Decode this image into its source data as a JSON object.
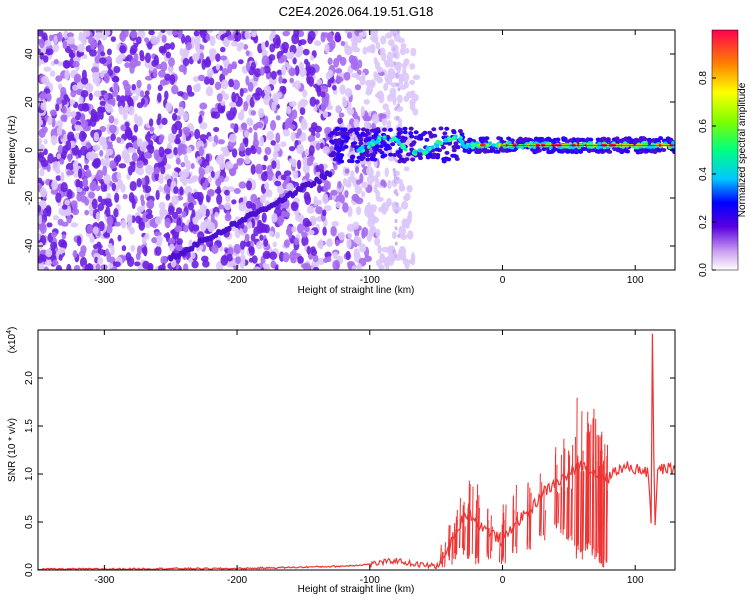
{
  "figure_title": "C2E4.2026.064.19.51.G18",
  "chart_data": [
    {
      "type": "heatmap",
      "title": "C2E4.2026.064.19.51.G18",
      "xlabel": "Height of straight line (km)",
      "ylabel": "Frequency (Hz)",
      "xlim": [
        -350,
        130
      ],
      "ylim": [
        -50,
        50
      ],
      "xticks": [
        -300,
        -200,
        -100,
        0,
        100
      ],
      "yticks": [
        -40,
        -20,
        0,
        20,
        40
      ],
      "xtick_labels": [
        "-300",
        "-200",
        "-100",
        "0",
        "100"
      ],
      "ytick_labels": [
        "-40",
        "-20",
        "0",
        "20",
        "40"
      ],
      "colorbar": {
        "label": "Normalized spectral amplitude",
        "range": [
          0,
          1
        ],
        "ticks": [
          0.0,
          0.2,
          0.4,
          0.6,
          0.8
        ],
        "tick_labels": [
          "0.0",
          "0.2",
          "0.4",
          "0.6",
          "0.8"
        ]
      },
      "features": {
        "noise_region_x": [
          -350,
          -80
        ],
        "main_signal_line": {
          "x_start": -130,
          "x_end": 130,
          "freq_hz": 2
        },
        "diagonal_trace": {
          "x": [
            -250,
            -130
          ],
          "freq_hz": [
            -45,
            -10
          ]
        }
      }
    },
    {
      "type": "line",
      "title": "",
      "xlabel": "Height of straight line (km)",
      "ylabel": "SNR (10 * v/v)",
      "y_multiplier": "(x10",
      "y_multiplier_exp": "4",
      "y_multiplier_close": ")",
      "xlim": [
        -350,
        130
      ],
      "ylim": [
        0,
        2.5
      ],
      "xticks": [
        -300,
        -200,
        -100,
        0,
        100
      ],
      "yticks": [
        0.0,
        0.5,
        1.0,
        1.5,
        2.0
      ],
      "xtick_labels": [
        "-300",
        "-200",
        "-100",
        "0",
        "100"
      ],
      "ytick_labels": [
        "0.0",
        "0.5",
        "1.0",
        "1.5",
        "2.0"
      ],
      "color": "#ee3333",
      "series": [
        {
          "name": "SNR",
          "x": [
            -350,
            -300,
            -250,
            -200,
            -150,
            -120,
            -100,
            -90,
            -80,
            -70,
            -60,
            -50,
            -45,
            -40,
            -35,
            -30,
            -25,
            -20,
            -15,
            -10,
            -5,
            0,
            5,
            10,
            15,
            20,
            25,
            30,
            35,
            40,
            45,
            50,
            55,
            60,
            65,
            70,
            75,
            80,
            85,
            90,
            95,
            100,
            105,
            110,
            112,
            113,
            114,
            115,
            117,
            120,
            125,
            130
          ],
          "values": [
            0.01,
            0.01,
            0.015,
            0.015,
            0.03,
            0.04,
            0.06,
            0.08,
            0.1,
            0.07,
            0.05,
            0.04,
            0.1,
            0.25,
            0.35,
            0.55,
            0.6,
            0.5,
            0.45,
            0.4,
            0.35,
            0.3,
            0.4,
            0.5,
            0.55,
            0.6,
            0.7,
            0.8,
            0.85,
            0.9,
            0.95,
            1.0,
            1.05,
            1.1,
            1.05,
            1.0,
            1.0,
            0.95,
            1.05,
            1.05,
            1.08,
            1.05,
            1.05,
            1.0,
            0.5,
            2.5,
            1.2,
            0.5,
            1.05,
            1.05,
            1.06,
            1.05
          ]
        }
      ],
      "spikes": {
        "x": [
          -45,
          -40,
          -35,
          -30,
          -25,
          -20,
          -10,
          0,
          10,
          20,
          30,
          40,
          45,
          50,
          55,
          58,
          62,
          65,
          70,
          72,
          75,
          78
        ],
        "peak": [
          0.3,
          0.5,
          0.7,
          0.8,
          0.95,
          0.9,
          0.75,
          0.7,
          0.9,
          0.95,
          1.1,
          1.3,
          1.4,
          1.5,
          1.6,
          1.85,
          1.7,
          1.55,
          1.7,
          1.6,
          1.5,
          1.45
        ],
        "trough": [
          0.02,
          0.05,
          0.1,
          0.15,
          0.1,
          0.05,
          0.1,
          0.05,
          0.15,
          0.2,
          0.3,
          0.4,
          0.35,
          0.3,
          0.2,
          0.1,
          0.2,
          0.25,
          0.15,
          0.1,
          0.05,
          0.0
        ]
      }
    }
  ]
}
